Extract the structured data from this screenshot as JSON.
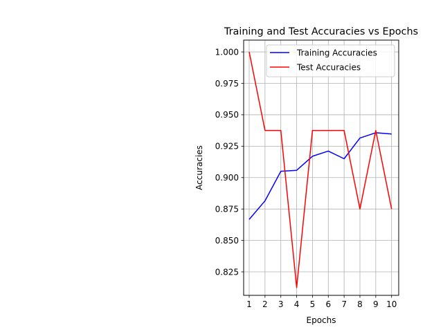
{
  "chart_data": {
    "type": "line",
    "title": "Training and Test Accuracies vs Epochs",
    "xlabel": "Epochs",
    "ylabel": "Accuracies",
    "x": [
      1,
      2,
      3,
      4,
      5,
      6,
      7,
      8,
      9,
      10
    ],
    "xlim": [
      0.65,
      10.45
    ],
    "ylim": [
      0.8063,
      1.0094
    ],
    "y_ticks": [
      0.825,
      0.85,
      0.875,
      0.9,
      0.925,
      0.95,
      0.975,
      1.0
    ],
    "y_tick_labels": [
      "0.825",
      "0.850",
      "0.875",
      "0.900",
      "0.925",
      "0.950",
      "0.975",
      "1.000"
    ],
    "grid": true,
    "legend_position": "upper right",
    "series": [
      {
        "name": "Training Accuracies",
        "color": "#0000ff",
        "values": [
          0.8667,
          0.8815,
          0.905,
          0.9058,
          0.917,
          0.9211,
          0.915,
          0.9315,
          0.9357,
          0.9347
        ]
      },
      {
        "name": "Test Accuracies",
        "color": "#ff0000",
        "values": [
          1.0,
          0.9375,
          0.9375,
          0.8125,
          0.9375,
          0.9375,
          0.9375,
          0.875,
          0.9375,
          0.875
        ]
      }
    ]
  }
}
